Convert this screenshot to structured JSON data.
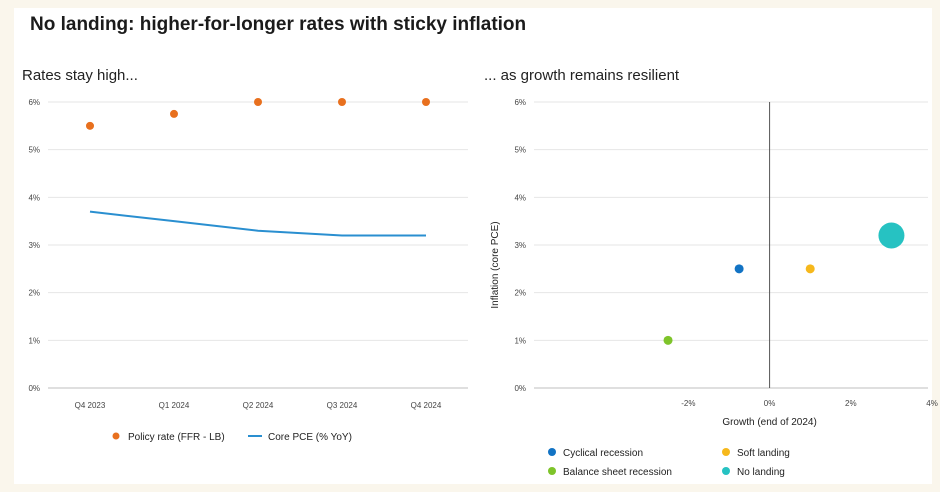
{
  "page": {
    "title": "No landing: higher-for-longer rates with sticky inflation"
  },
  "colors": {
    "orange": "#e8701e",
    "blue": "#2a8fd0",
    "darkblue": "#1273c4",
    "yellow": "#f6b81c",
    "green": "#7ec42a",
    "teal": "#26c2c2"
  },
  "chart_data": [
    {
      "type": "line",
      "title": "Rates stay high...",
      "categories": [
        "Q4 2023",
        "Q1 2024",
        "Q2 2024",
        "Q3 2024",
        "Q4 2024"
      ],
      "yticks": [
        "0%",
        "1%",
        "2%",
        "3%",
        "4%",
        "5%",
        "6%"
      ],
      "ylim": [
        0,
        6
      ],
      "grid": true,
      "legend_position": "bottom",
      "series": [
        {
          "name": "Policy rate (FFR - LB)",
          "style": "dots",
          "color": "#e8701e",
          "values": [
            5.5,
            5.75,
            6.0,
            6.0,
            6.0
          ]
        },
        {
          "name": "Core PCE (% YoY)",
          "style": "line",
          "color": "#2a8fd0",
          "values": [
            3.7,
            3.5,
            3.3,
            3.2,
            3.2
          ]
        }
      ]
    },
    {
      "type": "scatter",
      "title": "... as growth remains resilient",
      "xlabel": "Growth (end of 2024)",
      "ylabel": "Inflation (core PCE)",
      "xlim": [
        -5.8,
        3.9
      ],
      "ylim": [
        0,
        6
      ],
      "xticks": [
        "-2%",
        "0%",
        "2%",
        "4%"
      ],
      "yticks": [
        "0%",
        "1%",
        "2%",
        "3%",
        "4%",
        "5%",
        "6%"
      ],
      "grid": true,
      "legend_position": "bottom",
      "points": [
        {
          "name": "Cyclical recession",
          "x": -0.75,
          "y": 2.5,
          "color": "#1273c4",
          "size": "small"
        },
        {
          "name": "Soft landing",
          "x": 1.0,
          "y": 2.5,
          "color": "#f6b81c",
          "size": "small"
        },
        {
          "name": "Balance sheet recession",
          "x": -2.5,
          "y": 1.0,
          "color": "#7ec42a",
          "size": "small"
        },
        {
          "name": "No landing",
          "x": 3.0,
          "y": 3.2,
          "color": "#26c2c2",
          "size": "large"
        }
      ]
    }
  ]
}
